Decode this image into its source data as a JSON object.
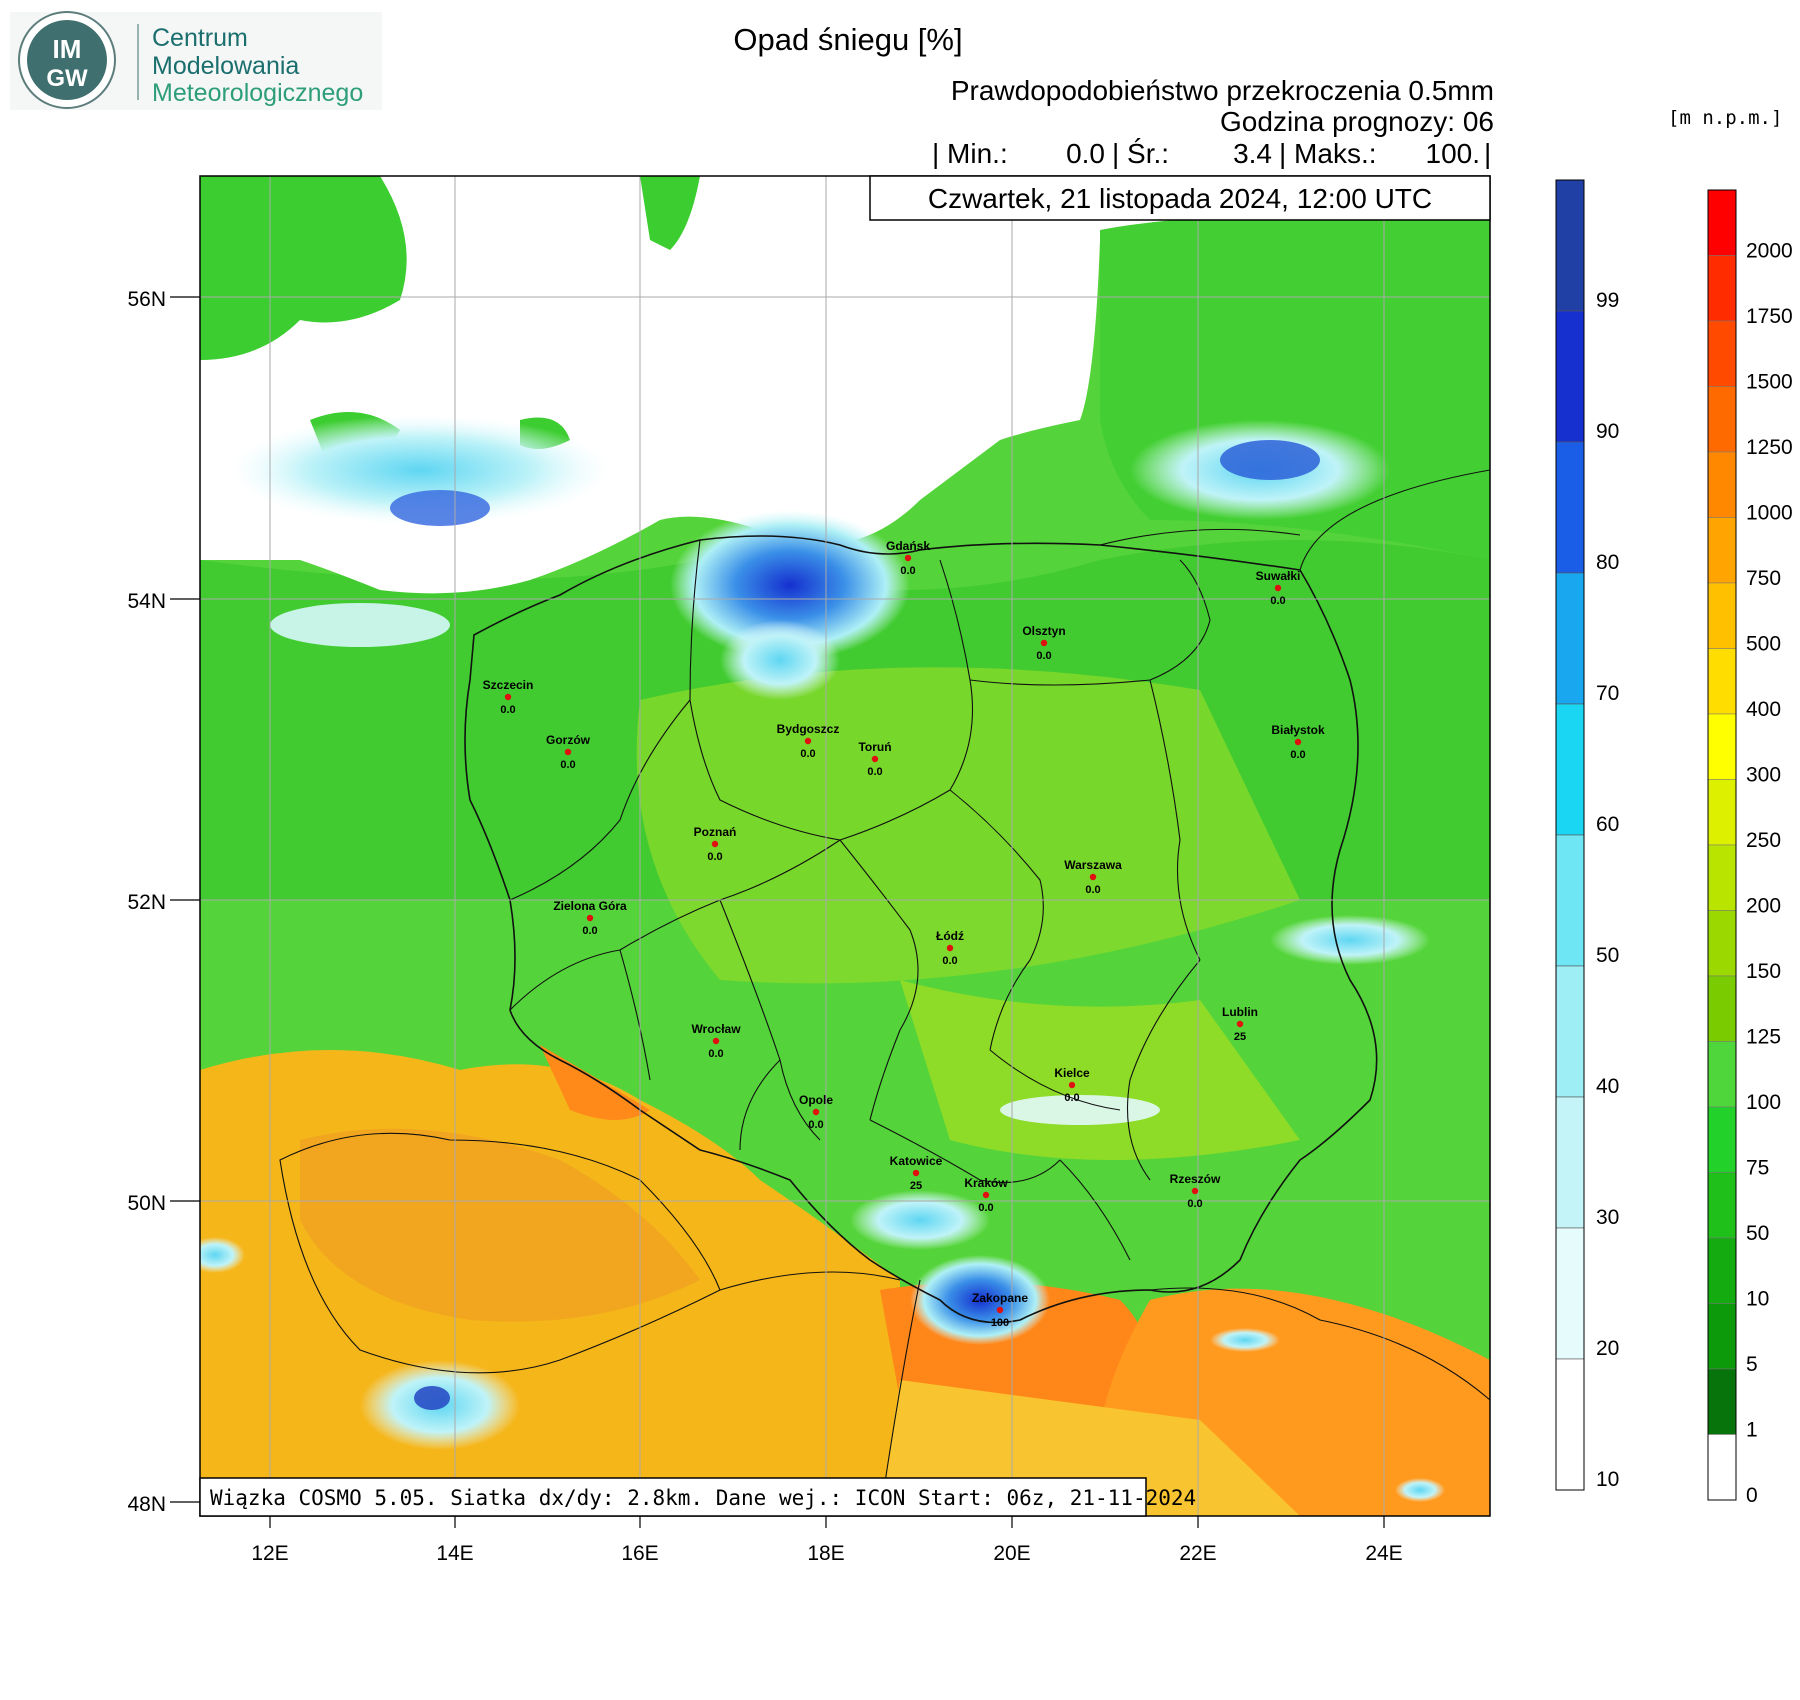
{
  "logo": {
    "badge_top": "IM",
    "badge_bottom": "GW",
    "line1": "Centrum",
    "line2": "Modelowania",
    "line3": "Meteorologicznego",
    "colors": {
      "primary": "#1b6e6e",
      "accent": "#2e9d7a"
    }
  },
  "title": "Opad śniegu [%]",
  "subtitle_prob": "Prawdopodobieństwo przekroczenia 0.5mm",
  "subtitle_hour": "Godzina prognozy: 06",
  "stats": {
    "min_label": "| Min.:",
    "min_value": "0.0",
    "avg_label": "| Śr.:",
    "avg_value": "3.4",
    "max_label": "| Maks.:",
    "max_value": "100.",
    "end": "|"
  },
  "datetime": "Czwartek, 21 listopada 2024, 12:00 UTC",
  "elevation_unit": "[m  n.p.m.]",
  "footer": "Wiązka COSMO 5.05. Siatka dx/dy: 2.8km. Dane wej.: ICON Start: 06z, 21-11-2024",
  "axes": {
    "lat_labels": [
      "56N",
      "54N",
      "52N",
      "50N",
      "48N"
    ],
    "lon_labels": [
      "12E",
      "14E",
      "16E",
      "18E",
      "20E",
      "22E",
      "24E"
    ]
  },
  "snow_scale": {
    "labels": [
      "99",
      "90",
      "80",
      "70",
      "60",
      "50",
      "40",
      "30",
      "20",
      "10"
    ],
    "colors": [
      "#2140a6",
      "#1530cf",
      "#1a5ee8",
      "#19a8ef",
      "#1bd6f2",
      "#6fe6f4",
      "#9eeef6",
      "#c4f4f8",
      "#e6fbfc",
      "#ffffff"
    ]
  },
  "height_scale": {
    "labels": [
      "2000",
      "1750",
      "1500",
      "1250",
      "1000",
      "750",
      "500",
      "400",
      "300",
      "250",
      "200",
      "150",
      "125",
      "100",
      "75",
      "50",
      "10",
      "5",
      "1",
      "0"
    ],
    "colors": [
      "#ff0000",
      "#ff2c00",
      "#ff4a00",
      "#ff6a00",
      "#ff8800",
      "#ffa400",
      "#ffc000",
      "#ffdd00",
      "#ffff00",
      "#dcf000",
      "#b8e400",
      "#9ad800",
      "#7acc00",
      "#4fd63a",
      "#22d22a",
      "#1fc01a",
      "#14ab10",
      "#0d9a0a",
      "#06740a",
      "#ffffff"
    ]
  },
  "cities": [
    {
      "name": "Gdańsk",
      "value": "0.0"
    },
    {
      "name": "Suwałki",
      "value": "0.0"
    },
    {
      "name": "Olsztyn",
      "value": "0.0"
    },
    {
      "name": "Szczecin",
      "value": "0.0"
    },
    {
      "name": "Bydgoszcz",
      "value": "0.0"
    },
    {
      "name": "Toruń",
      "value": "0.0"
    },
    {
      "name": "Białystok",
      "value": "0.0"
    },
    {
      "name": "Gorzów",
      "value": "0.0"
    },
    {
      "name": "Poznań",
      "value": "0.0"
    },
    {
      "name": "Warszawa",
      "value": "0.0"
    },
    {
      "name": "Zielona Góra",
      "value": "0.0"
    },
    {
      "name": "Łódź",
      "value": "0.0"
    },
    {
      "name": "Lublin",
      "value": "25"
    },
    {
      "name": "Wrocław",
      "value": "0.0"
    },
    {
      "name": "Kielce",
      "value": "0.0"
    },
    {
      "name": "Opole",
      "value": "0.0"
    },
    {
      "name": "Katowice",
      "value": "25"
    },
    {
      "name": "Kraków",
      "value": "0.0"
    },
    {
      "name": "Rzeszów",
      "value": "0.0"
    },
    {
      "name": "Zakopane",
      "value": "100"
    }
  ]
}
